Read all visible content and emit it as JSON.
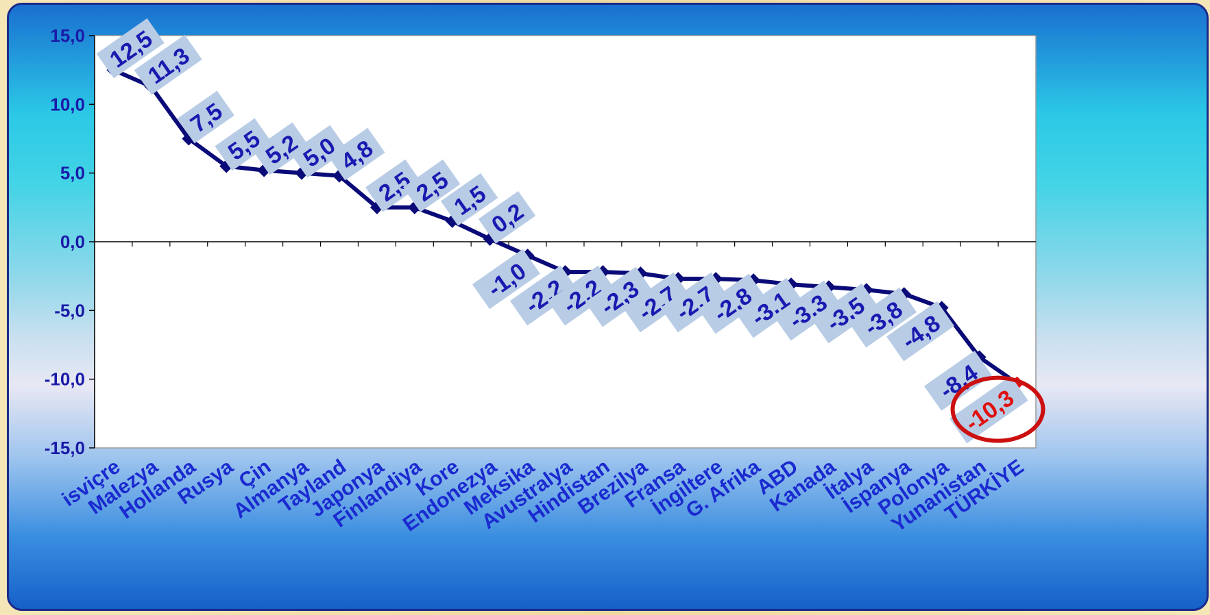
{
  "chart_data": {
    "type": "line",
    "title": "",
    "xlabel": "",
    "ylabel": "",
    "ylim": [
      -15,
      15
    ],
    "yticks": [
      "15,0",
      "10,0",
      "5,0",
      "0,0",
      "-5,0",
      "-10,0",
      "-15,0"
    ],
    "categories": [
      "isviçre",
      "Malezya",
      "Hollanda",
      "Rusya",
      "Çin",
      "Almanya",
      "Tayland",
      "Japonya",
      "Finlandiya",
      "Kore",
      "Endonezya",
      "Meksika",
      "Avustralya",
      "Hindistan",
      "Brezilya",
      "Fransa",
      "İngiltere",
      "G. Afrika",
      "ABD",
      "Kanada",
      "İtalya",
      "İspanya",
      "Polonya",
      "Yunanistan",
      "TÜRKİYE"
    ],
    "values": [
      12.5,
      11.3,
      7.5,
      5.5,
      5.2,
      5.0,
      4.8,
      2.5,
      2.5,
      1.5,
      0.2,
      -1.0,
      -2.2,
      -2.2,
      -2.3,
      -2.7,
      -2.7,
      -2.8,
      -3.1,
      -3.3,
      -3.5,
      -3.8,
      -4.8,
      -8.4,
      -10.3
    ],
    "data_labels": [
      "12,5",
      "11,3",
      "7,5",
      "5,5",
      "5,2",
      "5,0",
      "4,8",
      "2,5",
      "2,5",
      "1,5",
      "0,2",
      "-1,0",
      "-2,2",
      "-2,2",
      "-2,3",
      "-2,7",
      "-2,7",
      "-2,8",
      "-3,1",
      "-3,3",
      "-3,5",
      "-3,8",
      "-4,8",
      "-8,4",
      "-10,3"
    ],
    "highlight_index": 24,
    "colors": {
      "line": "#0a0a78",
      "label": "#1a1ab0",
      "label_box": "#b8cce6",
      "highlight": "#e01010",
      "highlight_circle": "#cc1010"
    },
    "grid": false,
    "legend": "none"
  }
}
